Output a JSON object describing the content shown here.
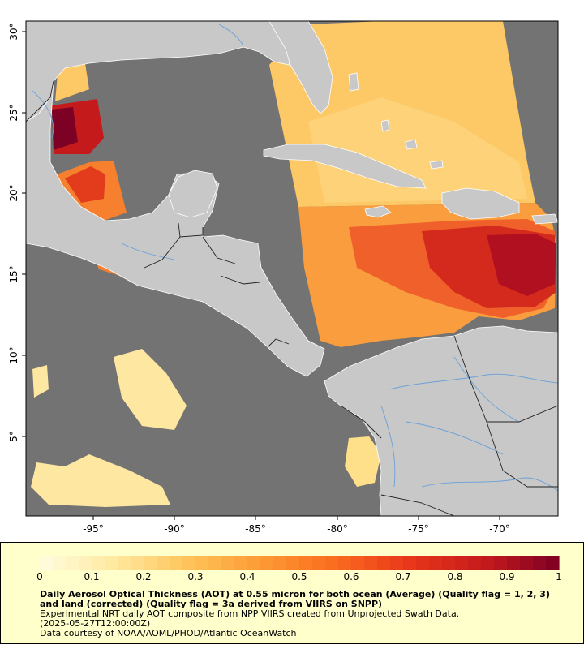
{
  "map": {
    "longitude_ticks": [
      "-95°",
      "-90°",
      "-85°",
      "-80°",
      "-75°",
      "-70°"
    ],
    "latitude_ticks": [
      "5°",
      "10°",
      "15°",
      "20°",
      "25°",
      "30°"
    ],
    "extent": {
      "lon_min": -99,
      "lon_max": -66.5,
      "lat_min": 0.5,
      "lat_max": 31
    },
    "colors": {
      "ocean_nodata": "#737373",
      "land": "#c8c8c8",
      "rivers": "#6aa0d8",
      "borders": "#222222",
      "coast": "#ffffff"
    }
  },
  "colorbar": {
    "labels": [
      "0",
      "0.1",
      "0.2",
      "0.3",
      "0.4",
      "0.5",
      "0.6",
      "0.7",
      "0.8",
      "0.9",
      "1"
    ],
    "min": 0,
    "max": 1,
    "stops": [
      "#fffde0",
      "#ffe9a0",
      "#fec45a",
      "#fd9a34",
      "#fa6b1e",
      "#e8361a",
      "#c51a1c",
      "#7d0025"
    ]
  },
  "caption": {
    "title": "Daily Aerosol Optical Thickness (AOT) at 0.55 micron for both ocean (Average) (Quality flag = 1, 2, 3) and land (corrected) (Quality flag = 3a derived from VIIRS on SNPP)",
    "line1": "Experimental NRT daily AOT composite from NPP VIIRS created from Unprojected Swath Data.",
    "line2": "(2025-05-27T12:00:00Z)",
    "line3": "Data courtesy of NOAA/AOML/PHOD/Atlantic OceanWatch"
  }
}
